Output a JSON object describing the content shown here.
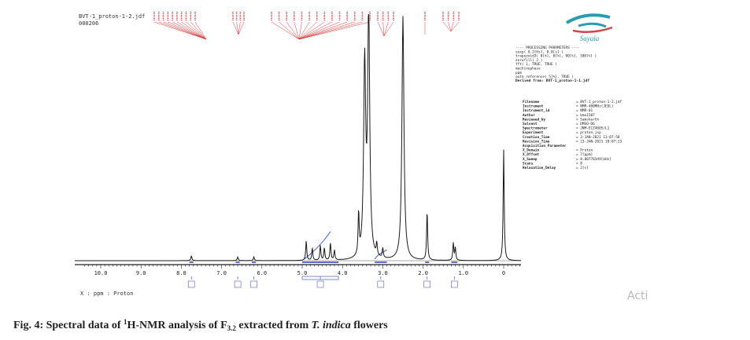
{
  "chart_data": {
    "type": "line",
    "title": "",
    "xlabel": "X : ppm : Proton",
    "ylabel": "",
    "xlim": [
      10.5,
      -0.4
    ],
    "x_reversed": true,
    "ylim": [
      0,
      1
    ],
    "grid": false,
    "x_ticks": [
      "10.0",
      "9.0",
      "8.0",
      "7.0",
      "6.0",
      "5.0",
      "4.0",
      "3.0",
      "2.0",
      "1.0",
      "0"
    ],
    "x_tick_values": [
      10,
      9,
      8,
      7,
      6,
      5,
      4,
      3,
      2,
      1,
      0
    ],
    "peaks": [
      {
        "ppm": 7.75,
        "height": 0.02
      },
      {
        "ppm": 6.6,
        "height": 0.015
      },
      {
        "ppm": 6.2,
        "height": 0.015
      },
      {
        "ppm": 4.9,
        "height": 0.08
      },
      {
        "ppm": 4.75,
        "height": 0.05
      },
      {
        "ppm": 4.55,
        "height": 0.06
      },
      {
        "ppm": 4.45,
        "height": 0.05
      },
      {
        "ppm": 4.3,
        "height": 0.07
      },
      {
        "ppm": 4.2,
        "height": 0.04
      },
      {
        "ppm": 3.6,
        "height": 0.17
      },
      {
        "ppm": 3.45,
        "height": 0.78
      },
      {
        "ppm": 3.35,
        "height": 1.0
      },
      {
        "ppm": 3.15,
        "height": 0.05
      },
      {
        "ppm": 3.0,
        "height": 0.04
      },
      {
        "ppm": 2.5,
        "height": 0.99
      },
      {
        "ppm": 1.9,
        "height": 0.2
      },
      {
        "ppm": 1.25,
        "height": 0.07
      },
      {
        "ppm": 1.2,
        "height": 0.05
      },
      {
        "ppm": 0.0,
        "height": 0.45
      }
    ],
    "integration_regions": [
      {
        "from": 7.8,
        "to": 7.7
      },
      {
        "from": 6.65,
        "to": 6.55
      },
      {
        "from": 6.25,
        "to": 6.15
      },
      {
        "from": 5.0,
        "to": 4.1
      },
      {
        "from": 3.2,
        "to": 2.9
      },
      {
        "from": 1.95,
        "to": 1.85
      },
      {
        "from": 1.3,
        "to": 1.15
      }
    ]
  },
  "spectrum": {
    "file_line1": "BVT-1_proton-1-2.jdf",
    "file_line2": "000206"
  },
  "logo": {
    "text": "Sayala"
  },
  "processing": {
    "lines": [
      "---- PROCESSING PARAMETERS ----",
      "sexp( 0.2[Hz], 0.0[s] )",
      "trapezoid3( 0[%], 0[%], 80[%], 100[%] )",
      "zerofill( 2 )",
      "fft( 1, TRUE, TRUE )",
      "machinephase",
      "ppm",
      "auto_reference( 5[%], TRUE )"
    ],
    "derived": "Derived from: BVT-1_proton-1-1.jdf"
  },
  "metadata": {
    "rows": [
      {
        "key": "Filename",
        "value": "= BVT-1_proton-1-2.jdf"
      },
      {
        "key": "Instrument",
        "value": "= NMR-400MHz(JEOL)"
      },
      {
        "key": "Instrument_id",
        "value": "= NMR-01"
      },
      {
        "key": "Author",
        "value": "= bmu1507"
      },
      {
        "key": "Reviewed_by",
        "value": "= Samsharth"
      },
      {
        "key": "Solvent",
        "value": "= DMSO-D6"
      },
      {
        "key": "Spectrometer",
        "value": "= JNM-ECZ400S/L1"
      },
      {
        "key": "Experiment",
        "value": "= proton.jxp"
      },
      {
        "key": "Creation_Time",
        "value": "= 3-JAN-2021 13:07:58"
      },
      {
        "key": "Revision_Time",
        "value": "= 23-JAN-2021 18:07:23"
      },
      {
        "key": "Acquisition Parameter",
        "value": ""
      },
      {
        "key": "X_Domain",
        "value": "= Proton"
      },
      {
        "key": "X_Offset",
        "value": "= 7[ppm]"
      },
      {
        "key": "X_Sweep",
        "value": "= 8.00778349[kHz]"
      },
      {
        "key": "Scans",
        "value": "= 8"
      },
      {
        "key": "Relaxation_Delay",
        "value": "= 2[s]"
      }
    ]
  },
  "watermark": {
    "text": "Acti"
  },
  "caption": {
    "prefix": "Fig. 4: Spectral data of ",
    "sup": "1",
    "middle": "H-NMR analysis of F",
    "sub": "3.2",
    "after_sub": " extracted from ",
    "italic": "T. indica",
    "suffix": " flowers"
  },
  "colors": {
    "spectrum": "#1a1a1a",
    "peak_labels": "#d63a3a",
    "integration": "#2f3ab5",
    "integral_curve": "#3b55d8",
    "logo_teal": "#2a9bb0",
    "logo_red": "#c84a4a",
    "axis": "#222222"
  }
}
